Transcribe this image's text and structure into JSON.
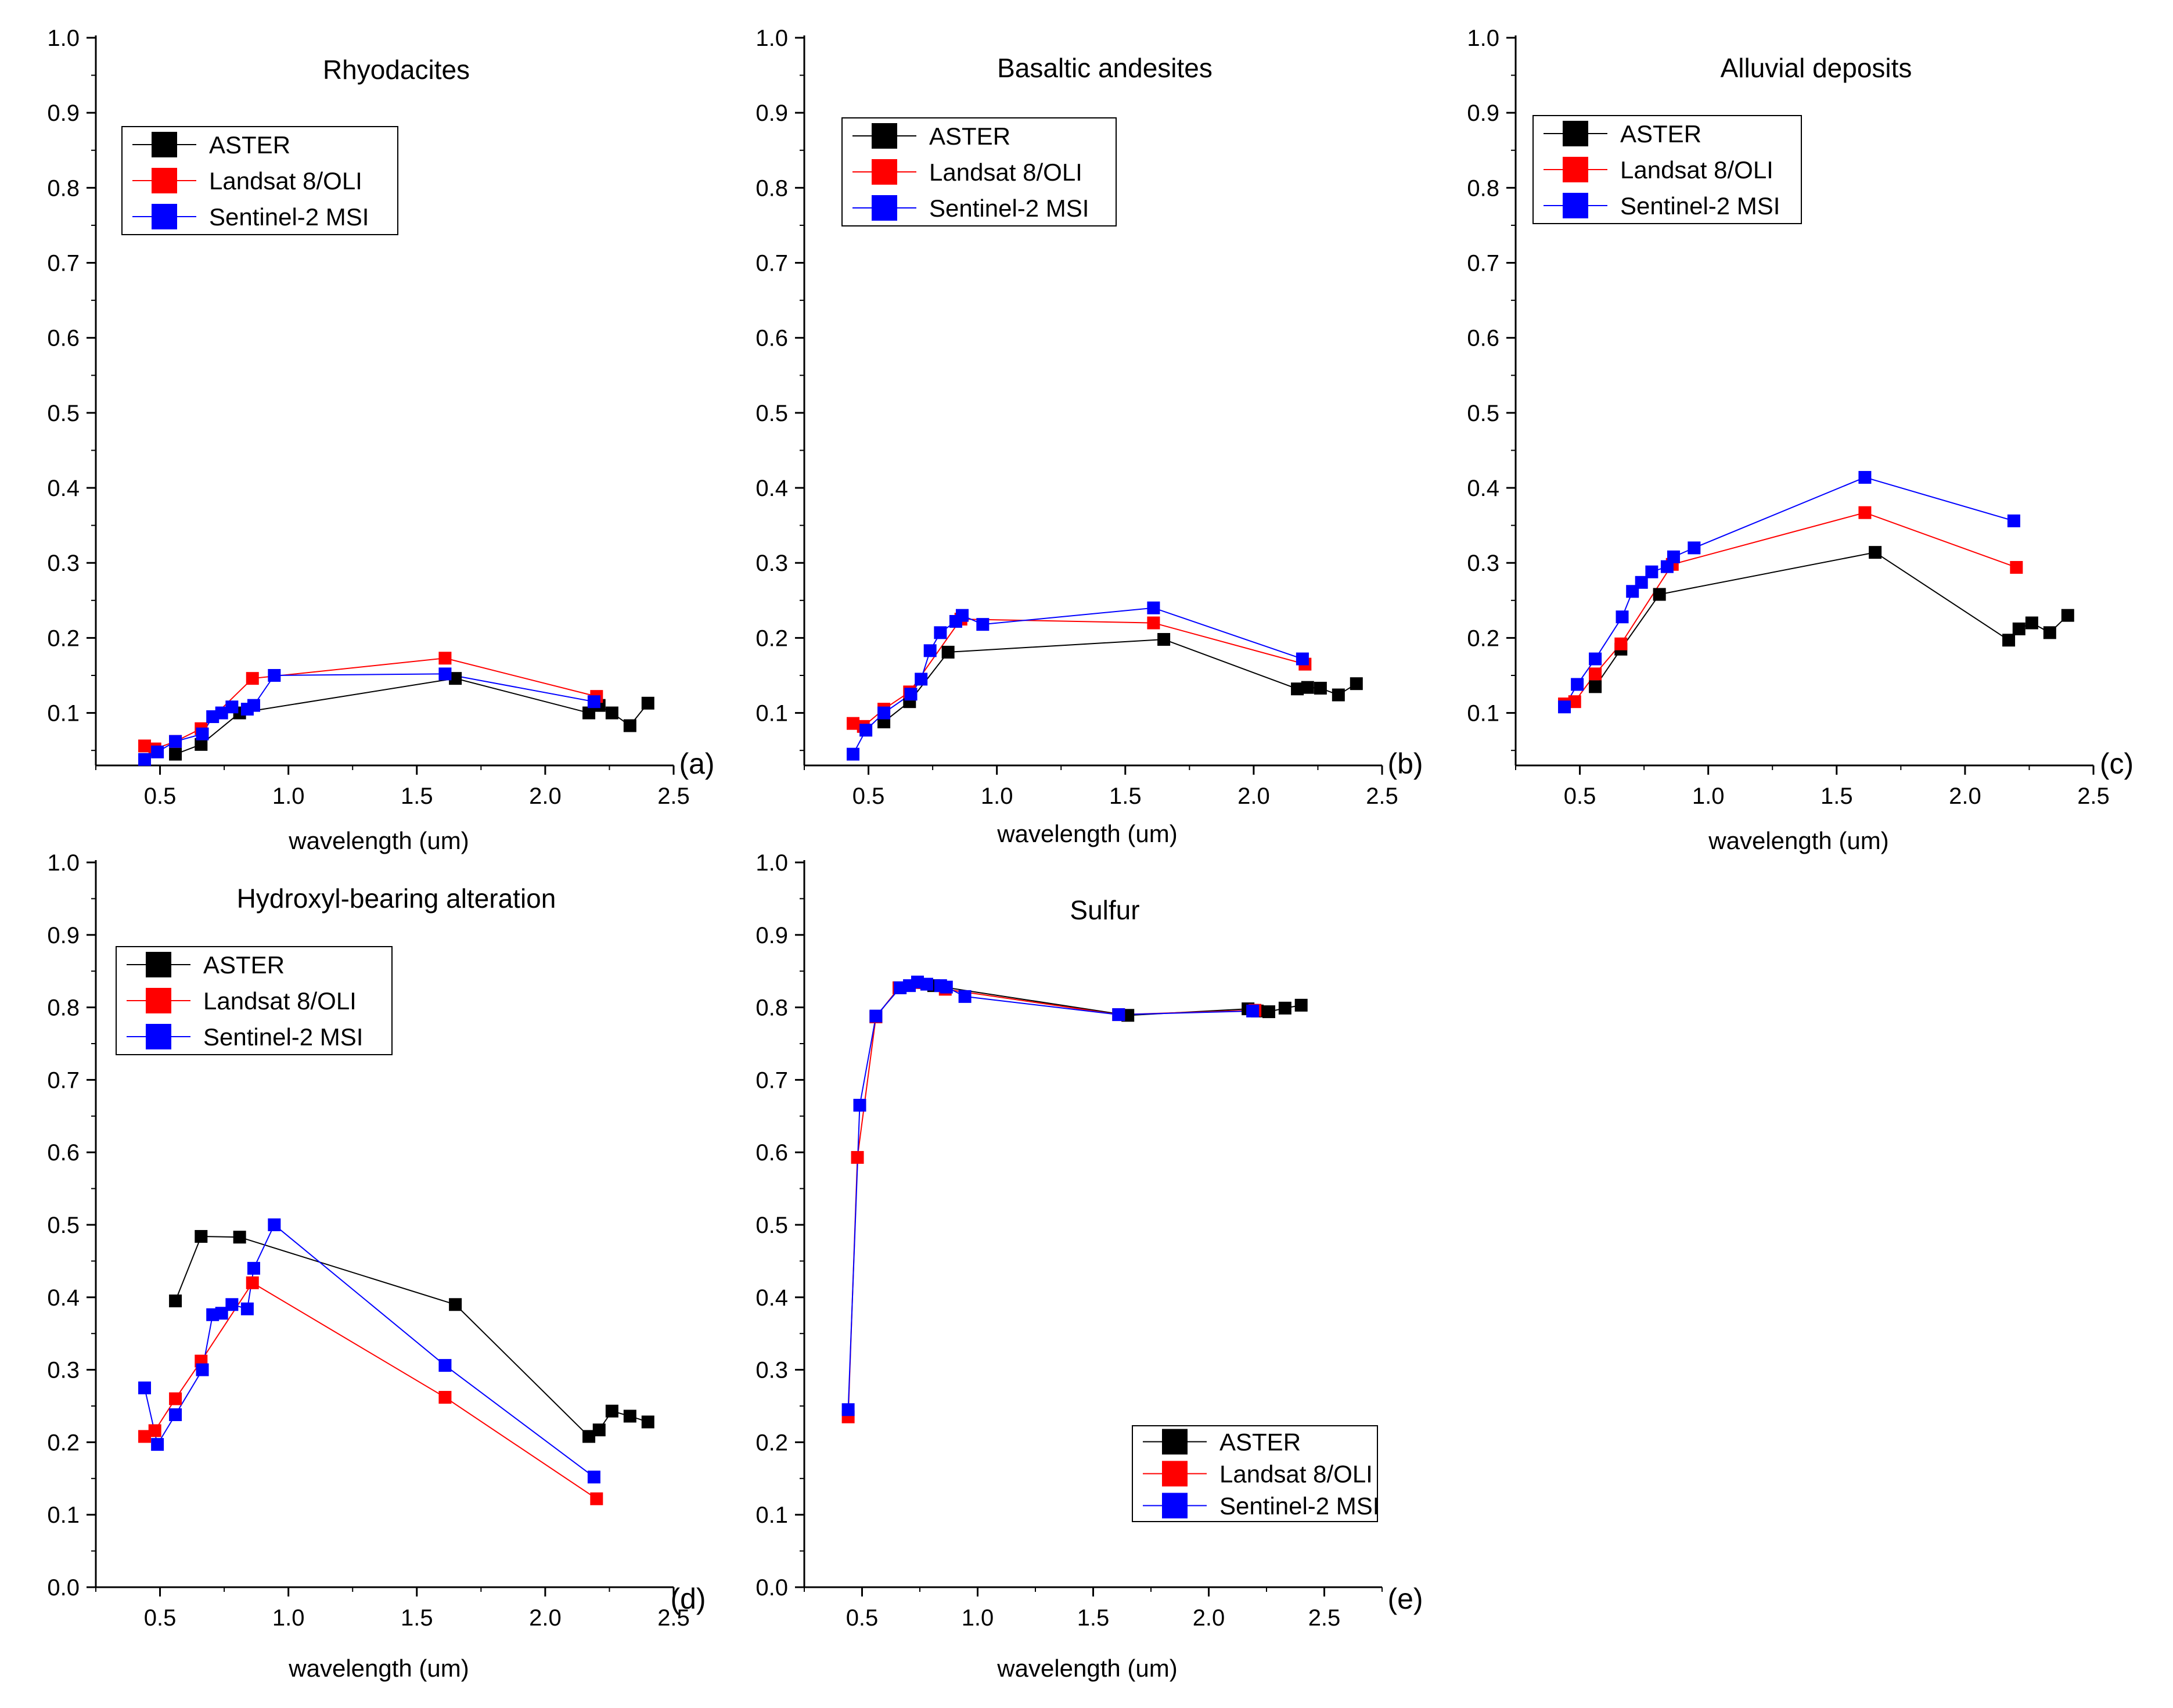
{
  "chart_data": [
    {
      "panel_label": "(a)",
      "type": "line",
      "title": "Rhyodacites",
      "xlabel": "wavelength (um)",
      "ylabel": "",
      "xlim": [
        0.25,
        2.5
      ],
      "ylim": [
        0.03,
        1.0
      ],
      "xticks": [
        "0.5",
        "1.0",
        "1.5",
        "2.0",
        "2.5"
      ],
      "yticks": [
        "0.1",
        "0.2",
        "0.3",
        "0.4",
        "0.5",
        "0.6",
        "0.7",
        "0.8",
        "0.9",
        "1.0"
      ],
      "legend_position": "top-left",
      "series": [
        {
          "name": "ASTER",
          "color": "#000000",
          "x": [
            0.56,
            0.66,
            0.81,
            1.65,
            2.17,
            2.21,
            2.26,
            2.33,
            2.4
          ],
          "y": [
            0.045,
            0.058,
            0.1,
            0.146,
            0.1,
            0.11,
            0.1,
            0.083,
            0.113
          ]
        },
        {
          "name": "Landsat 8/OLI",
          "color": "#ff0000",
          "x": [
            0.44,
            0.48,
            0.56,
            0.66,
            0.86,
            1.61,
            2.2
          ],
          "y": [
            0.056,
            0.052,
            0.062,
            0.079,
            0.146,
            0.173,
            0.122
          ]
        },
        {
          "name": "Sentinel-2 MSI",
          "color": "#0000ff",
          "x": [
            0.44,
            0.49,
            0.56,
            0.665,
            0.705,
            0.74,
            0.78,
            0.84,
            0.865,
            0.945,
            1.61,
            2.19
          ],
          "y": [
            0.038,
            0.048,
            0.062,
            0.072,
            0.095,
            0.1,
            0.108,
            0.105,
            0.11,
            0.15,
            0.152,
            0.115
          ]
        }
      ]
    },
    {
      "panel_label": "(b)",
      "type": "line",
      "title": "Basaltic andesites",
      "xlabel": "wavelength (um)",
      "ylabel": "",
      "xlim": [
        0.25,
        2.5
      ],
      "ylim": [
        0.03,
        1.0
      ],
      "xticks": [
        "0.5",
        "1.0",
        "1.5",
        "2.0",
        "2.5"
      ],
      "yticks": [
        "0.1",
        "0.2",
        "0.3",
        "0.4",
        "0.5",
        "0.6",
        "0.7",
        "0.8",
        "0.9",
        "1.0"
      ],
      "legend_position": "top-left",
      "series": [
        {
          "name": "ASTER",
          "color": "#000000",
          "x": [
            0.56,
            0.66,
            0.81,
            1.65,
            2.17,
            2.21,
            2.26,
            2.33,
            2.4
          ],
          "y": [
            0.088,
            0.115,
            0.181,
            0.198,
            0.132,
            0.134,
            0.133,
            0.124,
            0.139
          ]
        },
        {
          "name": "Landsat 8/OLI",
          "color": "#ff0000",
          "x": [
            0.44,
            0.48,
            0.56,
            0.66,
            0.86,
            1.61,
            2.2
          ],
          "y": [
            0.086,
            0.082,
            0.105,
            0.128,
            0.225,
            0.22,
            0.165
          ]
        },
        {
          "name": "Sentinel-2 MSI",
          "color": "#0000ff",
          "x": [
            0.44,
            0.49,
            0.56,
            0.665,
            0.705,
            0.74,
            0.78,
            0.84,
            0.865,
            0.945,
            1.61,
            2.19
          ],
          "y": [
            0.045,
            0.077,
            0.1,
            0.125,
            0.145,
            0.183,
            0.207,
            0.222,
            0.23,
            0.218,
            0.24,
            0.172
          ]
        }
      ]
    },
    {
      "panel_label": "(c)",
      "type": "line",
      "title": "Alluvial deposits",
      "xlabel": "wavelength (um)",
      "ylabel": "",
      "xlim": [
        0.25,
        2.5
      ],
      "ylim": [
        0.03,
        1.0
      ],
      "xticks": [
        "0.5",
        "1.0",
        "1.5",
        "2.0",
        "2.5"
      ],
      "yticks": [
        "0.1",
        "0.2",
        "0.3",
        "0.4",
        "0.5",
        "0.6",
        "0.7",
        "0.8",
        "0.9",
        "1.0"
      ],
      "legend_position": "top-left",
      "series": [
        {
          "name": "ASTER",
          "color": "#000000",
          "x": [
            0.56,
            0.66,
            0.81,
            1.65,
            2.17,
            2.21,
            2.26,
            2.33,
            2.4
          ],
          "y": [
            0.135,
            0.185,
            0.258,
            0.314,
            0.197,
            0.212,
            0.22,
            0.207,
            0.23
          ]
        },
        {
          "name": "Landsat 8/OLI",
          "color": "#ff0000",
          "x": [
            0.44,
            0.48,
            0.56,
            0.66,
            0.86,
            1.61,
            2.2
          ],
          "y": [
            0.112,
            0.115,
            0.152,
            0.192,
            0.298,
            0.367,
            0.294
          ]
        },
        {
          "name": "Sentinel-2 MSI",
          "color": "#0000ff",
          "x": [
            0.44,
            0.49,
            0.56,
            0.665,
            0.705,
            0.74,
            0.78,
            0.84,
            0.865,
            0.945,
            1.61,
            2.19
          ],
          "y": [
            0.108,
            0.138,
            0.172,
            0.228,
            0.262,
            0.274,
            0.288,
            0.295,
            0.308,
            0.32,
            0.414,
            0.356
          ]
        }
      ]
    },
    {
      "panel_label": "(d)",
      "type": "line",
      "title": "Hydroxyl-bearing alteration",
      "xlabel": "wavelength (um)",
      "ylabel": "",
      "xlim": [
        0.25,
        2.5
      ],
      "ylim": [
        0.0,
        1.0
      ],
      "xticks": [
        "0.5",
        "1.0",
        "1.5",
        "2.0",
        "2.5"
      ],
      "yticks": [
        "0.0",
        "0.1",
        "0.2",
        "0.3",
        "0.4",
        "0.5",
        "0.6",
        "0.7",
        "0.8",
        "0.9",
        "1.0"
      ],
      "legend_position": "top-left",
      "series": [
        {
          "name": "ASTER",
          "color": "#000000",
          "x": [
            0.56,
            0.66,
            0.81,
            1.65,
            2.17,
            2.21,
            2.26,
            2.33,
            2.4
          ],
          "y": [
            0.395,
            0.484,
            0.483,
            0.39,
            0.208,
            0.217,
            0.243,
            0.236,
            0.228
          ]
        },
        {
          "name": "Landsat 8/OLI",
          "color": "#ff0000",
          "x": [
            0.44,
            0.48,
            0.56,
            0.66,
            0.86,
            1.61,
            2.2
          ],
          "y": [
            0.208,
            0.216,
            0.26,
            0.312,
            0.42,
            0.262,
            0.122
          ]
        },
        {
          "name": "Sentinel-2 MSI",
          "color": "#0000ff",
          "x": [
            0.44,
            0.49,
            0.56,
            0.665,
            0.705,
            0.74,
            0.78,
            0.84,
            0.865,
            0.945,
            1.61,
            2.19
          ],
          "y": [
            0.275,
            0.197,
            0.238,
            0.3,
            0.376,
            0.378,
            0.39,
            0.384,
            0.44,
            0.5,
            0.306,
            0.152
          ]
        }
      ]
    },
    {
      "panel_label": "(e)",
      "type": "line",
      "title": "Sulfur",
      "xlabel": "wavelength (um)",
      "ylabel": "",
      "xlim": [
        0.25,
        2.75
      ],
      "ylim": [
        0.0,
        1.0
      ],
      "xticks": [
        "0.5",
        "1.0",
        "1.5",
        "2.0",
        "2.5"
      ],
      "yticks": [
        "0.0",
        "0.1",
        "0.2",
        "0.3",
        "0.4",
        "0.5",
        "0.6",
        "0.7",
        "0.8",
        "0.9",
        "1.0"
      ],
      "legend_position": "bottom-right",
      "series": [
        {
          "name": "ASTER",
          "color": "#000000",
          "x": [
            0.56,
            0.66,
            0.81,
            1.65,
            2.17,
            2.21,
            2.26,
            2.33,
            2.4
          ],
          "y": [
            0.787,
            0.827,
            0.83,
            0.789,
            0.798,
            0.795,
            0.794,
            0.799,
            0.803
          ]
        },
        {
          "name": "Landsat 8/OLI",
          "color": "#ff0000",
          "x": [
            0.44,
            0.48,
            0.56,
            0.66,
            0.86,
            1.61,
            2.2
          ],
          "y": [
            0.235,
            0.593,
            0.787,
            0.827,
            0.825,
            0.79,
            0.796
          ]
        },
        {
          "name": "Sentinel-2 MSI",
          "color": "#0000ff",
          "x": [
            0.44,
            0.49,
            0.56,
            0.665,
            0.705,
            0.74,
            0.78,
            0.84,
            0.865,
            0.945,
            1.61,
            2.19
          ],
          "y": [
            0.245,
            0.665,
            0.788,
            0.827,
            0.83,
            0.835,
            0.832,
            0.83,
            0.828,
            0.815,
            0.79,
            0.795
          ]
        }
      ]
    }
  ]
}
